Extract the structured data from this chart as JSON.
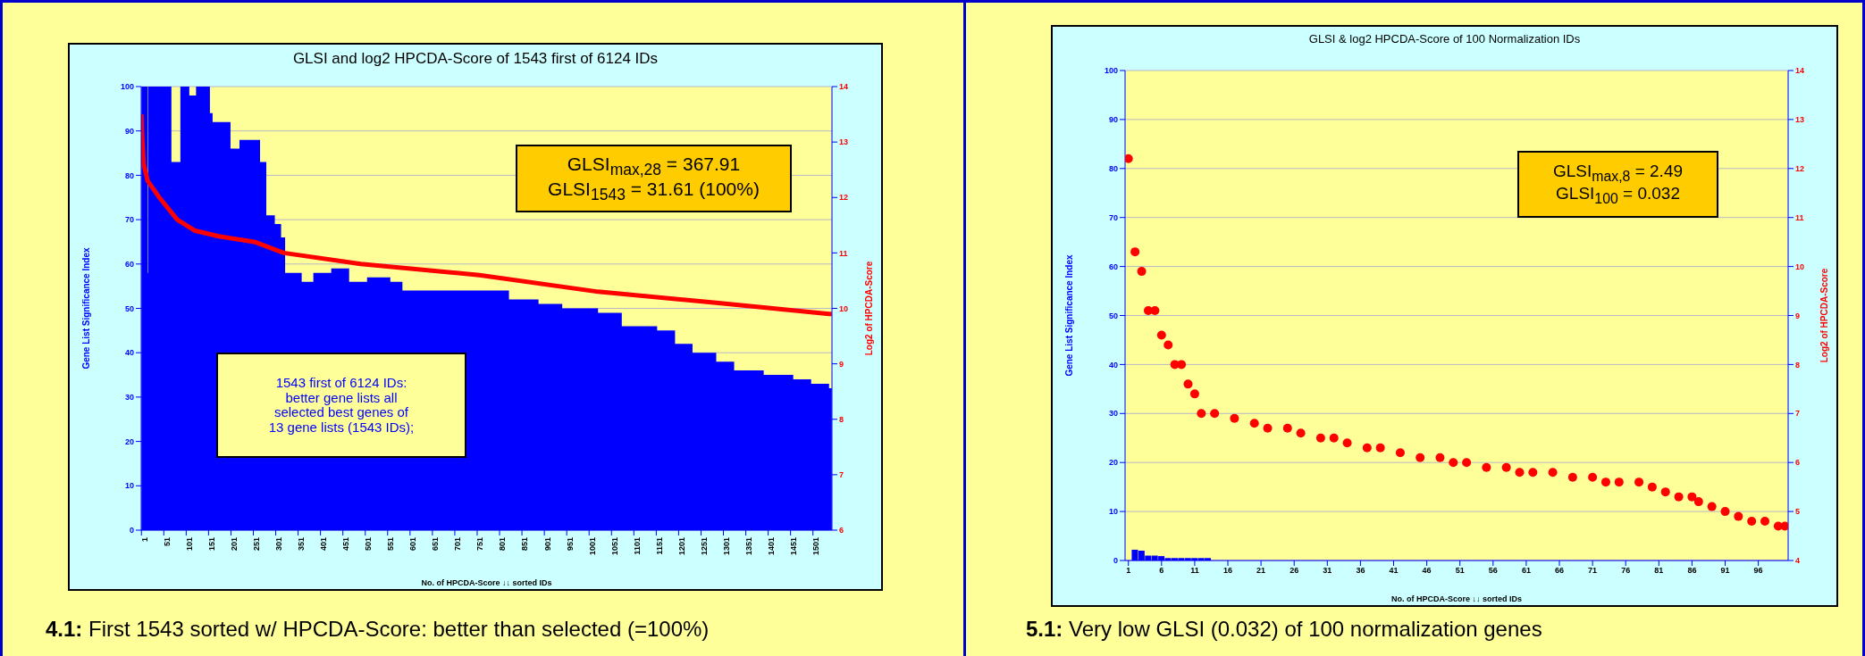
{
  "chart_data": [
    {
      "type": "area",
      "title": "GLSI and log2 HPCDA-Score of 1543 first of 6124 IDs",
      "xlabel": "No. of HPCDA-Score ↓↓ sorted IDs",
      "ylabel": "Gene List Significance Index",
      "y2label": "Log2 of HPCDA-Score",
      "xlim": [
        0.5,
        1543.5
      ],
      "xticks": [
        1,
        51,
        101,
        151,
        201,
        251,
        301,
        351,
        401,
        451,
        501,
        551,
        601,
        651,
        701,
        751,
        801,
        851,
        901,
        951,
        1001,
        1051,
        1101,
        1151,
        1201,
        1251,
        1301,
        1351,
        1401,
        1451,
        1501
      ],
      "ylim": [
        0,
        100
      ],
      "yticks": [
        0,
        10,
        20,
        30,
        40,
        50,
        60,
        70,
        80,
        90,
        100
      ],
      "y2lim": [
        6,
        14
      ],
      "y2ticks": [
        6,
        7,
        8,
        9,
        10,
        11,
        12,
        13,
        14
      ],
      "grid": "y",
      "series": [
        {
          "color": "#0000ff",
          "x": [
            1,
            14,
            15,
            16,
            21,
            61,
            68,
            84,
            88,
            108,
            123,
            147,
            154,
            160,
            174,
            200,
            220,
            253,
            266,
            280,
            299,
            313,
            322,
            359,
            385,
            425,
            465,
            505,
            557,
            584,
            650,
            756,
            822,
            888,
            941,
            1021,
            1074,
            1153,
            1193,
            1232,
            1246,
            1285,
            1325,
            1391,
            1457,
            1497,
            1537,
            1543
          ],
          "values": [
            100,
            100,
            58,
            100,
            100,
            100,
            83,
            83,
            100,
            98,
            100,
            100,
            94,
            92,
            92,
            86,
            88,
            88,
            83,
            71,
            69,
            66,
            58,
            56,
            58,
            59,
            56,
            57,
            56,
            54,
            54,
            54,
            52,
            51,
            50,
            49,
            46,
            45,
            42,
            40,
            40,
            38,
            36,
            35,
            34,
            33,
            32,
            32
          ]
        },
        {
          "type": "line",
          "axis": "y2",
          "color": "#ff0000",
          "x": [
            1,
            2,
            6,
            15,
            41,
            81,
            121,
            174,
            253,
            319,
            491,
            756,
            1021,
            1285,
            1537,
            1543
          ],
          "values": [
            13.5,
            13.2,
            12.6,
            12.3,
            12.0,
            11.6,
            11.4,
            11.3,
            11.2,
            11.0,
            10.8,
            10.6,
            10.3,
            10.1,
            9.9,
            9.9
          ]
        }
      ],
      "annotations": [
        "GLSI$_{max,28}$ = 367.91",
        "GLSI$_{1543}$ = 31.61 (100%)",
        "1543 first of 6124 IDs:",
        "better gene lists all",
        "selected best genes of",
        "13 gene lists (1543 IDs);",
        "4.1: First 1543 sorted w/ HPCDA-Score: better than selected (=100%)"
      ]
    },
    {
      "type": "scatter",
      "title": "GLSI & log2 HPCDA-Score of 100 Normalization IDs",
      "xlabel": "No. of HPCDA-Score ↓↓ sorted IDs",
      "ylabel": "Gene List Significance Index",
      "y2label": "Log2 of HPCDA-Score",
      "xlim": [
        0.5,
        100.5
      ],
      "xticks": [
        1,
        6,
        11,
        16,
        21,
        26,
        31,
        36,
        41,
        46,
        51,
        56,
        61,
        66,
        71,
        76,
        81,
        86,
        91,
        96
      ],
      "ylim": [
        0,
        100
      ],
      "yticks": [
        0,
        10,
        20,
        30,
        40,
        50,
        60,
        70,
        80,
        90,
        100
      ],
      "y2lim": [
        4,
        14
      ],
      "y2ticks": [
        4,
        5,
        6,
        7,
        8,
        9,
        10,
        11,
        12,
        13,
        14
      ],
      "grid": "y",
      "series": [
        {
          "type": "bar",
          "color": "#0000ff",
          "x": [
            2,
            3,
            4,
            5,
            6,
            7,
            8,
            9,
            10,
            11,
            12,
            13
          ],
          "values": [
            2.2,
            2.0,
            1.0,
            1.0,
            0.9,
            0.5,
            0.5,
            0.5,
            0.5,
            0.5,
            0.5,
            0.5
          ]
        },
        {
          "axis": "y2",
          "color": "#ff0000",
          "marker": "circle",
          "x": [
            1,
            2,
            3,
            4,
            5,
            6,
            7,
            8,
            9,
            10,
            11,
            12,
            14,
            17,
            20,
            22,
            25,
            27,
            30,
            32,
            34,
            37,
            39,
            42,
            45,
            48,
            50,
            52,
            55,
            58,
            60,
            62,
            65,
            68,
            71,
            73,
            75,
            78,
            80,
            82,
            84,
            86,
            87,
            89,
            91,
            93,
            95,
            97,
            99,
            100
          ],
          "values": [
            12.2,
            10.3,
            9.9,
            9.1,
            9.1,
            8.6,
            8.4,
            8.0,
            8.0,
            7.6,
            7.4,
            7.0,
            7.0,
            6.9,
            6.8,
            6.7,
            6.7,
            6.6,
            6.5,
            6.5,
            6.4,
            6.3,
            6.3,
            6.2,
            6.1,
            6.1,
            6.0,
            6.0,
            5.9,
            5.9,
            5.8,
            5.8,
            5.8,
            5.7,
            5.7,
            5.6,
            5.6,
            5.6,
            5.5,
            5.4,
            5.3,
            5.3,
            5.2,
            5.1,
            5.0,
            4.9,
            4.8,
            4.8,
            4.7,
            4.7
          ]
        }
      ],
      "annotations": [
        "GLSI$_{max,8}$ = 2.49",
        "GLSI$_{100}$ = 0.032",
        "5.1: Very low GLSI (0.032) of 100 normalization genes"
      ]
    }
  ]
}
